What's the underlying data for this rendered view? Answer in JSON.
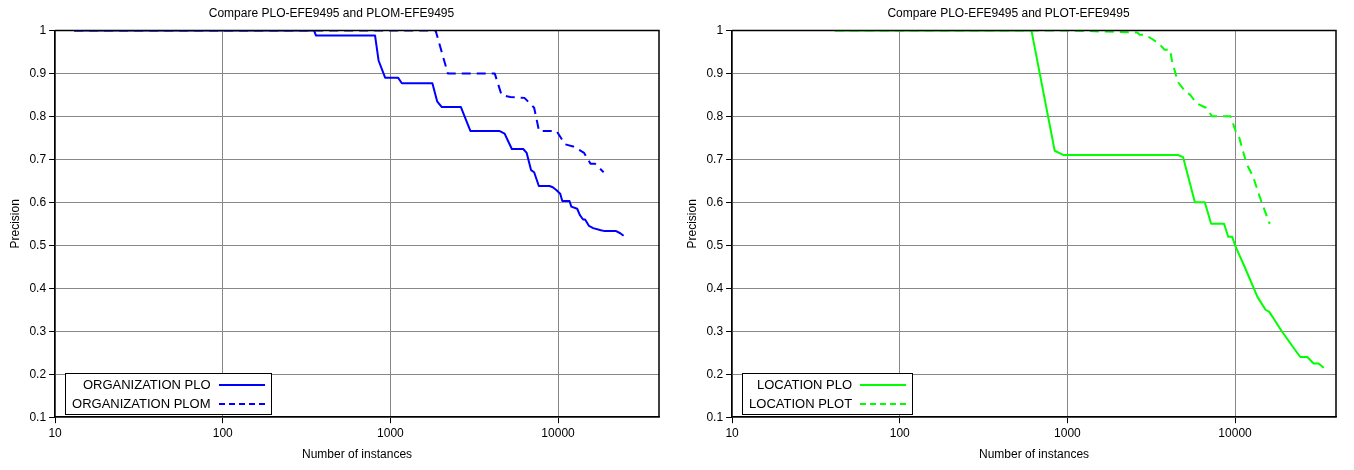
{
  "chart_data": [
    {
      "type": "line",
      "title": "Compare PLO-EFE9495 and PLOM-EFE9495",
      "xlabel": "Number of instances",
      "ylabel": "Precision",
      "log": "x",
      "xlim": [
        10,
        40000
      ],
      "ylim": [
        0.1,
        1
      ],
      "xticks": [
        10,
        100,
        1000,
        10000
      ],
      "yticks": [
        0.1,
        0.2,
        0.3,
        0.4,
        0.5,
        0.6,
        0.7,
        0.8,
        0.9,
        1
      ],
      "grid": true,
      "legend": "bottom left",
      "series": [
        {
          "name": "ORGANIZATION PLO",
          "color": "#0000ff",
          "line_style": "solid",
          "x": [
            13,
            350,
            360,
            810,
            850,
            930,
            1110,
            1170,
            1780,
            1900,
            2020,
            2630,
            2870,
            3000,
            4460,
            4800,
            5000,
            5300,
            6200,
            6500,
            6900,
            7200,
            7680,
            8900,
            9300,
            9800,
            10300,
            10600,
            11700,
            12000,
            13000,
            13500,
            14100,
            14500,
            15300,
            16200,
            18000,
            19000,
            22200,
            23500,
            24600
          ],
          "values": [
            1,
            1,
            0.988,
            0.988,
            0.93,
            0.89,
            0.89,
            0.877,
            0.877,
            0.835,
            0.822,
            0.822,
            0.785,
            0.766,
            0.766,
            0.76,
            0.745,
            0.724,
            0.724,
            0.715,
            0.675,
            0.67,
            0.638,
            0.638,
            0.635,
            0.628,
            0.62,
            0.603,
            0.603,
            0.59,
            0.585,
            0.57,
            0.56,
            0.56,
            0.545,
            0.54,
            0.535,
            0.533,
            0.533,
            0.528,
            0.522
          ]
        },
        {
          "name": "ORGANIZATION PLOM",
          "color": "#0000ff",
          "line_style": "dashed",
          "x": [
            13,
            1860,
            2200,
            4190,
            4600,
            5200,
            6300,
            6800,
            7200,
            7700,
            9800,
            11000,
            12300,
            14300,
            15600,
            16600,
            18700
          ],
          "values": [
            1,
            1,
            0.9,
            0.9,
            0.85,
            0.845,
            0.843,
            0.83,
            0.82,
            0.766,
            0.766,
            0.735,
            0.73,
            0.715,
            0.69,
            0.69,
            0.67
          ]
        }
      ]
    },
    {
      "type": "line",
      "title": "Compare PLO-EFE9495 and PLOT-EFE9495",
      "xlabel": "Number of instances",
      "ylabel": "Precision",
      "log": "x",
      "xlim": [
        10,
        40000
      ],
      "ylim": [
        0.1,
        1
      ],
      "xticks": [
        10,
        100,
        1000,
        10000
      ],
      "yticks": [
        0.1,
        0.2,
        0.3,
        0.4,
        0.5,
        0.6,
        0.7,
        0.8,
        0.9,
        1
      ],
      "grid": true,
      "legend": "bottom left",
      "series": [
        {
          "name": "LOCATION PLO",
          "color": "#00ff00",
          "line_style": "solid",
          "x": [
            41,
            610,
            840,
            950,
            4560,
            4900,
            5760,
            6600,
            7200,
            8600,
            9100,
            9600,
            10000,
            11400,
            13600,
            15200,
            16000,
            19000,
            22000,
            24500,
            27000,
            29400,
            31500,
            33800
          ],
          "values": [
            1,
            1,
            0.72,
            0.71,
            0.71,
            0.705,
            0.6,
            0.6,
            0.55,
            0.55,
            0.52,
            0.52,
            0.5,
            0.45,
            0.38,
            0.35,
            0.345,
            0.3,
            0.265,
            0.24,
            0.24,
            0.225,
            0.225,
            0.215
          ]
        },
        {
          "name": "LOCATION PLOT",
          "color": "#00ff00",
          "line_style": "dashed",
          "x": [
            41,
            980,
            2610,
            2700,
            2900,
            3200,
            3500,
            3800,
            4100,
            4200,
            4560,
            5000,
            5400,
            5900,
            6700,
            7300,
            9400,
            10200,
            10600,
            11700,
            12800,
            14400,
            16100
          ],
          "values": [
            1,
            1,
            0.995,
            0.99,
            0.99,
            0.98,
            0.97,
            0.955,
            0.955,
            0.93,
            0.88,
            0.86,
            0.85,
            0.83,
            0.82,
            0.8,
            0.8,
            0.76,
            0.75,
            0.69,
            0.66,
            0.6,
            0.55
          ]
        }
      ]
    }
  ]
}
